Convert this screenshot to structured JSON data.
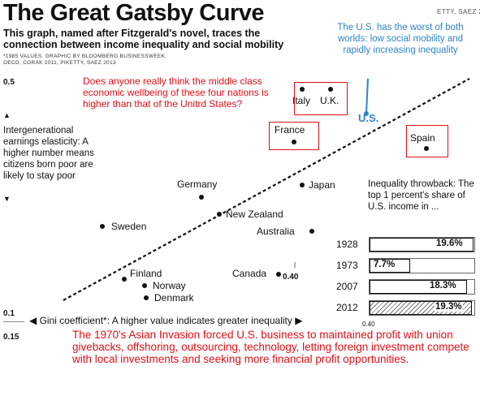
{
  "title": "The Great Gatsby Curve",
  "subtitle": "This graph, named after Fitzgerald's novel, traces the connection between income inequality and social mobility",
  "source_line1": "*1985 VALUES. GRAPHIC BY BLOOMBERG BUSINESSWEEK.",
  "source_line2": "OECD, CORAK 2011, PIKETTY, SAEZ 2013",
  "credit_fragment": "ETTY, SAEZ 2013",
  "us_note": "The U.S. has the worst of both worlds: low social mobility and rapidly increasing inequality",
  "y_axis": {
    "top_value": "0.5",
    "bottom_value": "0.1",
    "arrow_up": "▲",
    "arrow_down": "▼",
    "label": "Intergenerational earnings elasticity: A higher number means citizens born poor are likely to stay poor"
  },
  "x_axis": {
    "left_value": "0.15",
    "right_value": "0.40",
    "label": "◀ Gini coefficient*: A higher value indicates greater inequality ▶"
  },
  "annotation_top": "Does anyone really think the  middle class economic wellbeing  of these four nations is higher than that of the Unitrd States?",
  "annotation_bottom": "The 1970's Asian Invasion forced U.S. business to maintained profit with union givebacks, offshoring, outsourcing, technology, letting foreign investment compete with local investments and seeking more financial profit opportunities.",
  "canada_tick": "|",
  "canada_value": "0.40",
  "inequality_title": "Inequality throwback: The top 1 percent's share of U.S. income in ...",
  "colors": {
    "red": "#e0101a",
    "blue": "#2f84c6",
    "ink": "#111111"
  },
  "chart_data": [
    {
      "type": "scatter",
      "title": "The Great Gatsby Curve",
      "xlabel": "Gini coefficient*: A higher value indicates greater inequality",
      "ylabel": "Intergenerational earnings elasticity: A higher number means citizens born poor are likely to stay poor",
      "xlim": [
        0.15,
        0.4
      ],
      "ylim": [
        0.1,
        0.5
      ],
      "trendline": "dashed",
      "points": [
        {
          "label": "Italy",
          "x": 0.335,
          "y": 0.5
        },
        {
          "label": "U.K.",
          "x": 0.345,
          "y": 0.5
        },
        {
          "label": "U.S.",
          "x": 0.37,
          "y": 0.47
        },
        {
          "label": "France",
          "x": 0.32,
          "y": 0.41
        },
        {
          "label": "Spain",
          "x": 0.39,
          "y": 0.4
        },
        {
          "label": "Germany",
          "x": 0.26,
          "y": 0.32
        },
        {
          "label": "Japan",
          "x": 0.32,
          "y": 0.34
        },
        {
          "label": "New Zealand",
          "x": 0.27,
          "y": 0.29
        },
        {
          "label": "Sweden",
          "x": 0.2,
          "y": 0.27
        },
        {
          "label": "Australia",
          "x": 0.33,
          "y": 0.26
        },
        {
          "label": "Canada",
          "x": 0.32,
          "y": 0.19
        },
        {
          "label": "Finland",
          "x": 0.21,
          "y": 0.18
        },
        {
          "label": "Norway",
          "x": 0.22,
          "y": 0.17
        },
        {
          "label": "Denmark",
          "x": 0.22,
          "y": 0.15
        }
      ]
    },
    {
      "type": "bar",
      "title": "Inequality throwback: The top 1 percent's share of U.S. income in ...",
      "categories": [
        "1928",
        "1973",
        "2007",
        "2012"
      ],
      "values": [
        19.6,
        7.7,
        18.3,
        19.3
      ],
      "labels": [
        "19.6%",
        "7.7%",
        "18.3%",
        "19.3%"
      ],
      "xlim": [
        0,
        20
      ],
      "highlight": "2012"
    }
  ]
}
